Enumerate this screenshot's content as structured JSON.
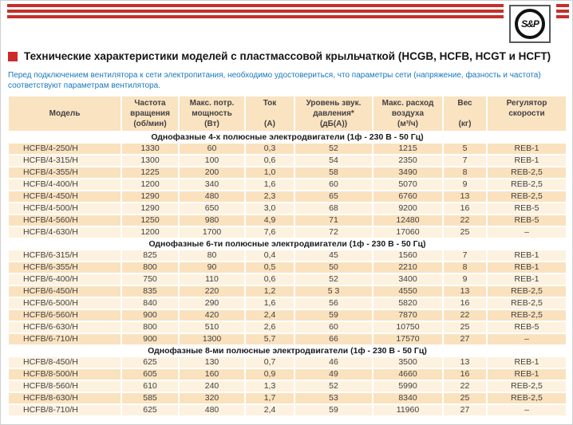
{
  "brand": {
    "logo_text": "S&P"
  },
  "header": {
    "title": "Технические характеристики моделей с пластмассовой крыльчаткой (HCGB, HCFB, HCGT и HCFT)",
    "note": "Перед подключением вентилятора к сети электропитания, необходимо удостовериться, что параметры сети (напряжение, фазность и частота) соответствуют параметрам вентилятора."
  },
  "colors": {
    "stripe_red": "#c5302b",
    "title_square_red": "#cc2a28",
    "note_blue": "#1878be",
    "header_peach": "#fae3c1",
    "row_dark_peach": "#fae2be",
    "row_light_cream": "#fdf2df",
    "text_gray": "#414042"
  },
  "table": {
    "columns": [
      {
        "lines": [
          "",
          "Модель",
          ""
        ]
      },
      {
        "lines": [
          "Частота",
          "вращения",
          "(об/мин)"
        ]
      },
      {
        "lines": [
          "Макс. потр.",
          "мощность",
          "(Вт)"
        ]
      },
      {
        "lines": [
          "Ток",
          "",
          "(А)"
        ]
      },
      {
        "lines": [
          "Уровень звук.",
          "давления*",
          "(дБ(А))"
        ]
      },
      {
        "lines": [
          "Макс. расход",
          "воздуха",
          "(м³/ч)"
        ]
      },
      {
        "lines": [
          "Вес",
          "",
          "(кг)"
        ]
      },
      {
        "lines": [
          "Регулятор",
          "скорости",
          ""
        ]
      }
    ],
    "sections": [
      {
        "title": "Однофазные 4-х полюсные электродвигатели (1ф - 230 В - 50 Гц)",
        "rows": [
          [
            "HCFB/4-250/H",
            "1330",
            "60",
            "0,3",
            "52",
            "1215",
            "5",
            "REB-1"
          ],
          [
            "HCFB/4-315/H",
            "1300",
            "100",
            "0,6",
            "54",
            "2350",
            "7",
            "REB-1"
          ],
          [
            "HCFB/4-355/H",
            "1225",
            "200",
            "1,0",
            "58",
            "3490",
            "8",
            "REB-2,5"
          ],
          [
            "HCFB/4-400/H",
            "1200",
            "340",
            "1,6",
            "60",
            "5070",
            "9",
            "REB-2,5"
          ],
          [
            "HCFB/4-450/H",
            "1290",
            "480",
            "2,3",
            "65",
            "6760",
            "13",
            "REB-2,5"
          ],
          [
            "HCFB/4-500/H",
            "1290",
            "650",
            "3,0",
            "68",
            "9200",
            "16",
            "REB-5"
          ],
          [
            "HCFB/4-560/H",
            "1250",
            "980",
            "4,9",
            "71",
            "12480",
            "22",
            "REB-5"
          ],
          [
            "HCFB/4-630/H",
            "1200",
            "1700",
            "7,6",
            "72",
            "17060",
            "25",
            "–"
          ]
        ]
      },
      {
        "title": "Однофазные 6-ти полюсные электродвигатели (1ф - 230 В - 50 Гц)",
        "rows": [
          [
            "HCFB/6-315/H",
            "825",
            "80",
            "0,4",
            "45",
            "1560",
            "7",
            "REB-1"
          ],
          [
            "HCFB/6-355/H",
            "800",
            "90",
            "0,5",
            "50",
            "2210",
            "8",
            "REB-1"
          ],
          [
            "HCFB/6-400/H",
            "750",
            "110",
            "0,6",
            "52",
            "3400",
            "9",
            "REB-1"
          ],
          [
            "HCFB/6-450/H",
            "835",
            "220",
            "1,2",
            "5 3",
            "4550",
            "13",
            "REB-2,5"
          ],
          [
            "HCFB/6-500/H",
            "840",
            "290",
            "1,6",
            "56",
            "5820",
            "16",
            "REB-2,5"
          ],
          [
            "HCFB/6-560/H",
            "900",
            "420",
            "2,4",
            "59",
            "7870",
            "22",
            "REB-2,5"
          ],
          [
            "HCFB/6-630/H",
            "800",
            "510",
            "2,6",
            "60",
            "10750",
            "25",
            "REB-5"
          ],
          [
            "HCFB/6-710/H",
            "900",
            "1300",
            "5,7",
            "66",
            "17570",
            "27",
            "–"
          ]
        ]
      },
      {
        "title": "Однофазные 8-ми полюсные электродвигатели (1ф - 230 В - 50 Гц)",
        "rows": [
          [
            "HCFB/8-450/H",
            "625",
            "130",
            "0,7",
            "46",
            "3500",
            "13",
            "REB-1"
          ],
          [
            "HCFB/8-500/H",
            "605",
            "160",
            "0,9",
            "49",
            "4660",
            "16",
            "REB-1"
          ],
          [
            "HCFB/8-560/H",
            "610",
            "240",
            "1,3",
            "52",
            "5990",
            "22",
            "REB-2,5"
          ],
          [
            "HCFB/8-630/H",
            "585",
            "320",
            "1,7",
            "53",
            "8340",
            "25",
            "REB-2,5"
          ],
          [
            "HCFB/8-710/H",
            "625",
            "480",
            "2,4",
            "59",
            "11960",
            "27",
            "–"
          ]
        ]
      }
    ]
  }
}
